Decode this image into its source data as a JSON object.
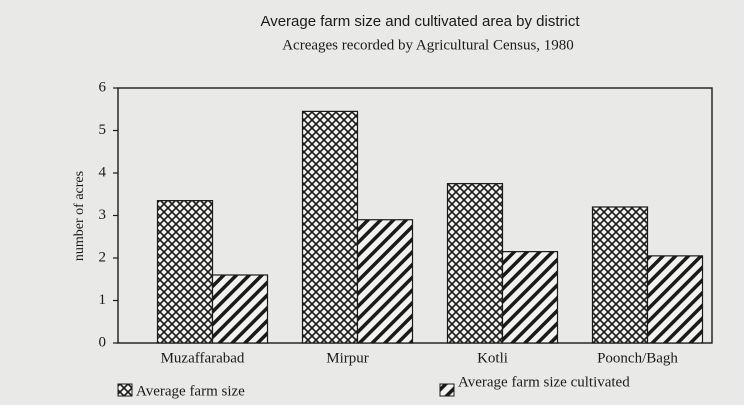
{
  "chart_data": {
    "type": "bar",
    "title": "Average farm size and cultivated area by district",
    "subtitle": "Acreages recorded by Agricultural Census, 1980",
    "y_label": "number of acres",
    "categories": [
      "Muzaffarabad",
      "Mirpur",
      "Kotli",
      "Poonch/Bagh"
    ],
    "series": [
      {
        "name": "Average farm size",
        "color": "#1a1a1a",
        "pattern": "crosshatch",
        "values": [
          3.35,
          5.45,
          3.75,
          3.2
        ]
      },
      {
        "name": "Average farm size cultivated",
        "color": "#1a1a1a",
        "pattern": "diagonal",
        "values": [
          1.6,
          2.9,
          2.15,
          2.05
        ]
      }
    ],
    "ylim": [
      0,
      6
    ],
    "yticks": [
      0,
      1,
      2,
      3,
      4,
      5,
      6
    ]
  }
}
